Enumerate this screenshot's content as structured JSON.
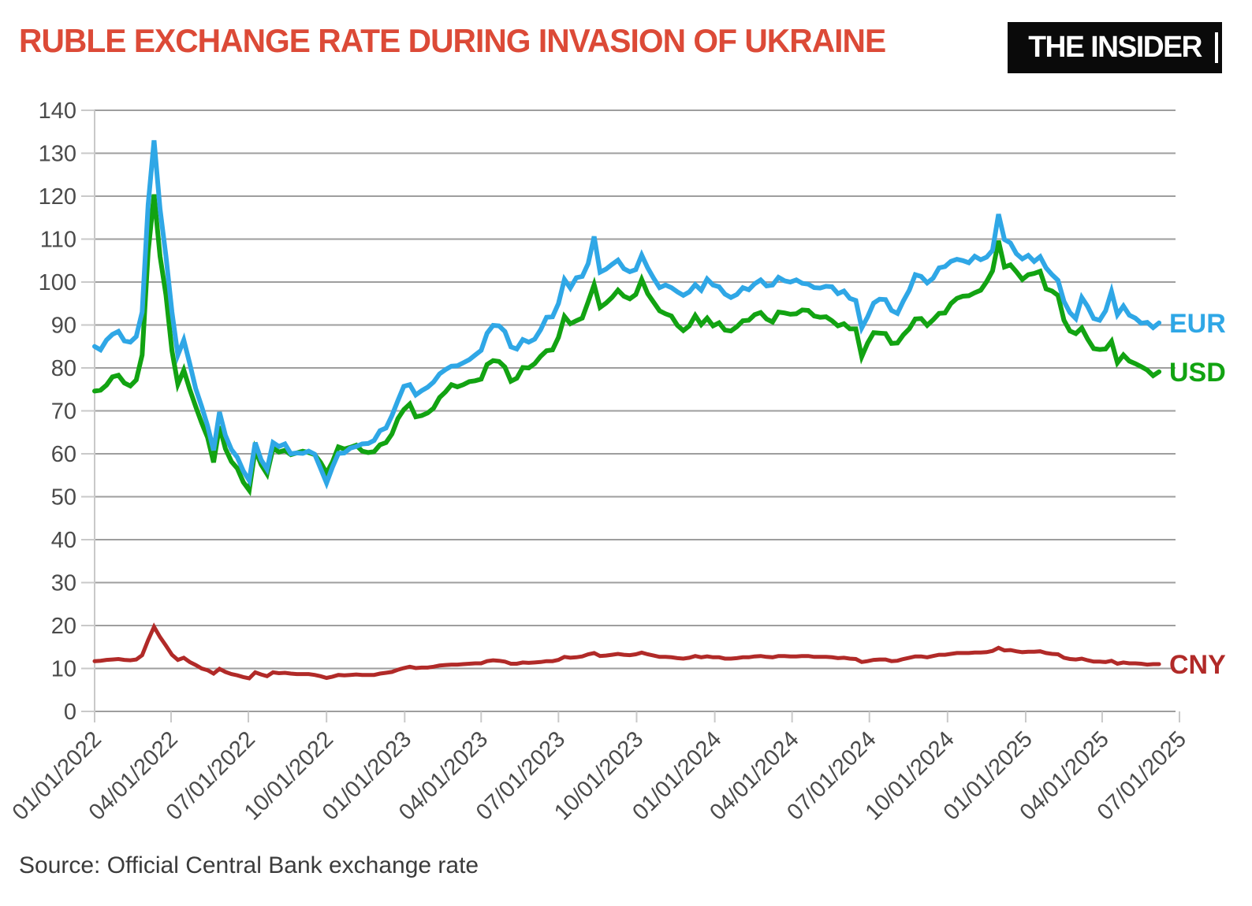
{
  "header": {
    "title": "RUBLE EXCHANGE RATE DURING INVASION OF UKRAINE",
    "logo_text": "THE INSIDER"
  },
  "source": {
    "text": "Source: Official Central Bank exchange rate"
  },
  "colors": {
    "title": "#dc4a37",
    "gridline": "#9e9e9e",
    "axis_line": "#c9c9c9",
    "axis_text": "#4b4b4b",
    "background": "#ffffff",
    "logo_bg": "#0a0a0a",
    "logo_text": "#ffffff"
  },
  "chart_data": {
    "type": "line",
    "title": "RUBLE EXCHANGE RATE DURING INVASION OF UKRAINE",
    "xlabel": "",
    "ylabel": "",
    "ylim": [
      0,
      140
    ],
    "y_tick_step": 10,
    "grid": "horizontal",
    "legend_position": "right-end-labels",
    "x_unit": "days since 01/01/2022",
    "sample_step_days": 7,
    "x_ticks": [
      {
        "day": 0,
        "label": "01/01/2022"
      },
      {
        "day": 90,
        "label": "04/01/2022"
      },
      {
        "day": 181,
        "label": "07/01/2022"
      },
      {
        "day": 273,
        "label": "10/01/2022"
      },
      {
        "day": 365,
        "label": "01/01/2023"
      },
      {
        "day": 455,
        "label": "04/01/2023"
      },
      {
        "day": 546,
        "label": "07/01/2023"
      },
      {
        "day": 638,
        "label": "10/01/2023"
      },
      {
        "day": 730,
        "label": "01/01/2024"
      },
      {
        "day": 821,
        "label": "04/01/2024"
      },
      {
        "day": 912,
        "label": "07/01/2024"
      },
      {
        "day": 1004,
        "label": "10/01/2024"
      },
      {
        "day": 1096,
        "label": "01/01/2025"
      },
      {
        "day": 1186,
        "label": "04/01/2025"
      },
      {
        "day": 1277,
        "label": "07/01/2025"
      }
    ],
    "series": [
      {
        "name": "EUR",
        "color": "#2fa7e6",
        "stroke_width": 6,
        "values": [
          85.0,
          84.2,
          86.5,
          87.8,
          88.5,
          86.3,
          86.0,
          87.3,
          93.0,
          118.0,
          133.0,
          117.0,
          106.0,
          93.0,
          83.0,
          86.5,
          81.0,
          75.2,
          71.0,
          66.5,
          60.8,
          69.7,
          64.3,
          61.0,
          59.2,
          56.0,
          53.8,
          62.6,
          58.6,
          56.4,
          62.6,
          61.7,
          62.3,
          60.0,
          60.2,
          60.1,
          60.6,
          59.9,
          56.6,
          53.2,
          56.9,
          60.1,
          60.2,
          61.3,
          61.7,
          62.3,
          62.4,
          63.1,
          65.4,
          66.0,
          68.9,
          72.4,
          75.7,
          76.1,
          73.7,
          74.7,
          75.5,
          76.7,
          78.6,
          79.6,
          80.4,
          80.5,
          81.2,
          81.9,
          83.0,
          84.1,
          88.1,
          89.9,
          89.8,
          88.5,
          84.9,
          84.4,
          86.6,
          86.0,
          86.7,
          88.9,
          91.8,
          91.9,
          95.0,
          100.6,
          98.6,
          101.0,
          101.3,
          104.3,
          110.6,
          102.3,
          103.0,
          104.1,
          105.1,
          103.1,
          102.4,
          102.9,
          106.3,
          103.3,
          100.9,
          98.7,
          99.3,
          98.7,
          97.7,
          96.9,
          97.7,
          99.4,
          98.1,
          100.7,
          99.3,
          98.9,
          97.2,
          96.4,
          97.1,
          98.7,
          98.2,
          99.6,
          100.5,
          99.1,
          99.3,
          101.1,
          100.3,
          100.0,
          100.5,
          99.7,
          99.5,
          98.7,
          98.6,
          99.0,
          98.9,
          97.3,
          97.9,
          96.2,
          95.7,
          89.3,
          91.9,
          95.1,
          96.0,
          95.9,
          93.4,
          92.7,
          95.6,
          98.1,
          101.7,
          101.3,
          99.8,
          100.9,
          103.3,
          103.6,
          104.8,
          105.3,
          105.0,
          104.5,
          106.0,
          105.2,
          105.8,
          107.4,
          115.8,
          109.9,
          109.1,
          106.6,
          105.4,
          106.2,
          104.8,
          105.9,
          103.3,
          101.7,
          100.4,
          95.5,
          92.9,
          91.5,
          96.4,
          94.3,
          91.5,
          91.1,
          93.3,
          97.8,
          92.4,
          94.4,
          92.3,
          91.6,
          90.4,
          90.6,
          89.4,
          90.5
        ]
      },
      {
        "name": "USD",
        "color": "#12a312",
        "stroke_width": 6,
        "values": [
          74.6,
          74.8,
          76.0,
          77.9,
          78.3,
          76.5,
          75.8,
          77.2,
          83.0,
          107.0,
          120.4,
          106.0,
          97.0,
          84.0,
          76.2,
          79.5,
          75.0,
          71.0,
          67.2,
          63.8,
          58.0,
          66.4,
          61.2,
          58.2,
          56.6,
          53.4,
          51.5,
          61.0,
          57.5,
          55.3,
          61.3,
          60.4,
          60.8,
          59.8,
          60.2,
          60.6,
          60.3,
          59.8,
          58.0,
          55.5,
          58.1,
          61.6,
          61.1,
          61.5,
          62.0,
          60.6,
          60.3,
          60.5,
          62.1,
          62.6,
          64.6,
          68.2,
          70.3,
          71.6,
          68.6,
          68.9,
          69.5,
          70.6,
          73.1,
          74.4,
          76.1,
          75.6,
          76.1,
          76.8,
          77.0,
          77.4,
          80.8,
          81.7,
          81.5,
          80.2,
          76.9,
          77.6,
          80.1,
          80.0,
          81.0,
          82.7,
          84.0,
          84.2,
          87.1,
          92.0,
          90.3,
          91.0,
          91.6,
          95.4,
          99.4,
          94.1,
          95.1,
          96.4,
          98.1,
          96.7,
          96.1,
          97.1,
          100.6,
          97.3,
          95.3,
          93.3,
          92.6,
          92.1,
          89.9,
          88.7,
          89.8,
          92.2,
          90.1,
          91.6,
          89.8,
          90.5,
          88.8,
          88.6,
          89.6,
          91.0,
          91.1,
          92.4,
          92.9,
          91.4,
          90.7,
          93.0,
          92.8,
          92.5,
          92.6,
          93.5,
          93.4,
          92.1,
          91.8,
          91.9,
          91.0,
          89.8,
          90.3,
          89.1,
          89.1,
          82.6,
          85.8,
          88.2,
          88.1,
          88.0,
          85.7,
          85.8,
          87.7,
          89.1,
          91.4,
          91.5,
          89.9,
          91.2,
          92.7,
          92.8,
          95.0,
          96.2,
          96.7,
          96.8,
          97.5,
          98.1,
          100.1,
          102.6,
          109.6,
          103.5,
          104.0,
          102.4,
          100.6,
          101.7,
          102.0,
          102.5,
          98.4,
          97.9,
          96.9,
          91.1,
          88.6,
          88.0,
          89.3,
          86.7,
          84.5,
          84.3,
          84.4,
          86.2,
          81.2,
          83.0,
          81.6,
          81.0,
          80.3,
          79.5,
          78.2,
          79.1
        ]
      },
      {
        "name": "CNY",
        "color": "#b12a28",
        "stroke_width": 5,
        "values": [
          11.7,
          11.8,
          12.0,
          12.1,
          12.2,
          12.0,
          11.9,
          12.1,
          13.1,
          16.6,
          19.7,
          17.3,
          15.3,
          13.2,
          12.0,
          12.5,
          11.5,
          10.8,
          10.0,
          9.6,
          8.8,
          9.9,
          9.2,
          8.7,
          8.4,
          8.0,
          7.7,
          9.1,
          8.6,
          8.2,
          9.1,
          8.9,
          9.0,
          8.8,
          8.7,
          8.7,
          8.7,
          8.5,
          8.2,
          7.8,
          8.1,
          8.5,
          8.4,
          8.5,
          8.6,
          8.5,
          8.5,
          8.5,
          8.8,
          9.0,
          9.2,
          9.7,
          10.1,
          10.4,
          10.1,
          10.2,
          10.2,
          10.4,
          10.7,
          10.8,
          10.9,
          10.9,
          11.0,
          11.1,
          11.2,
          11.2,
          11.7,
          11.9,
          11.8,
          11.6,
          11.1,
          11.1,
          11.4,
          11.3,
          11.4,
          11.5,
          11.7,
          11.7,
          12.0,
          12.7,
          12.5,
          12.6,
          12.8,
          13.3,
          13.6,
          12.9,
          13.0,
          13.2,
          13.4,
          13.2,
          13.1,
          13.3,
          13.7,
          13.3,
          13.0,
          12.7,
          12.7,
          12.6,
          12.4,
          12.3,
          12.5,
          12.9,
          12.6,
          12.8,
          12.6,
          12.6,
          12.3,
          12.3,
          12.4,
          12.6,
          12.6,
          12.8,
          12.9,
          12.7,
          12.6,
          12.9,
          12.9,
          12.8,
          12.8,
          12.9,
          12.9,
          12.7,
          12.7,
          12.7,
          12.6,
          12.4,
          12.5,
          12.3,
          12.2,
          11.5,
          11.7,
          12.0,
          12.1,
          12.1,
          11.7,
          11.8,
          12.2,
          12.5,
          12.8,
          12.8,
          12.6,
          12.9,
          13.2,
          13.2,
          13.4,
          13.6,
          13.6,
          13.6,
          13.7,
          13.7,
          13.8,
          14.1,
          14.8,
          14.2,
          14.3,
          14.0,
          13.8,
          13.9,
          13.9,
          14.0,
          13.6,
          13.4,
          13.3,
          12.5,
          12.2,
          12.1,
          12.3,
          11.9,
          11.6,
          11.6,
          11.5,
          11.8,
          11.1,
          11.4,
          11.2,
          11.2,
          11.1,
          10.9,
          11.0,
          11.0
        ]
      }
    ]
  }
}
